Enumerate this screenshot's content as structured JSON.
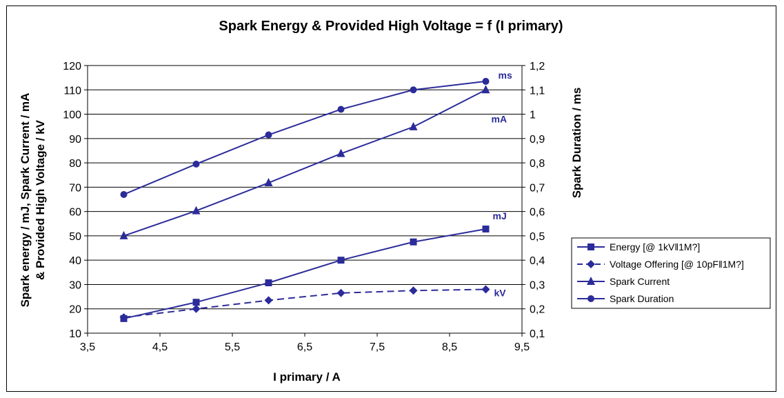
{
  "chart_data": {
    "type": "line",
    "title": "Spark Energy & Provided High Voltage = f (I primary)",
    "xlabel": "I primary / A",
    "ylabel_line1": "Spark energy / mJ, Spark Current / mA",
    "ylabel_line2": "& Provided High Voltage / kV",
    "y2label": "Spark Duration / ms",
    "xlim": [
      3.5,
      9.5
    ],
    "ylim": [
      10,
      120
    ],
    "y2lim": [
      0.1,
      1.2
    ],
    "x_ticks": [
      "3,5",
      "4,5",
      "5,5",
      "6,5",
      "7,5",
      "8,5",
      "9,5"
    ],
    "x_tick_values": [
      3.5,
      4.5,
      5.5,
      6.5,
      7.5,
      8.5,
      9.5
    ],
    "y_ticks": [
      "10",
      "20",
      "30",
      "40",
      "50",
      "60",
      "70",
      "80",
      "90",
      "100",
      "110",
      "120"
    ],
    "y_tick_values": [
      10,
      20,
      30,
      40,
      50,
      60,
      70,
      80,
      90,
      100,
      110,
      120
    ],
    "y2_ticks": [
      "0,1",
      "0,2",
      "0,3",
      "0,4",
      "0,5",
      "0,6",
      "0,7",
      "0,8",
      "0,9",
      "1",
      "1,1",
      "1,2"
    ],
    "grid": "horizontal",
    "legend_position": "right",
    "color": "#2B2B9A",
    "x": [
      4,
      5,
      6,
      7,
      8,
      9
    ],
    "series": [
      {
        "name": "Energy [@ 1kV‖1M?]",
        "axis": "left",
        "marker": "square",
        "dash": false,
        "unit": "mJ",
        "values": [
          16,
          22.7,
          30.7,
          40,
          47.5,
          52.8
        ]
      },
      {
        "name": "Voltage Offering [@ 10pF‖1M?]",
        "axis": "left",
        "marker": "diamond",
        "dash": true,
        "unit": "kV",
        "values": [
          16.5,
          20,
          23.5,
          26.5,
          27.5,
          28
        ]
      },
      {
        "name": "Spark Current",
        "axis": "left",
        "marker": "triangle",
        "dash": false,
        "unit": "mA",
        "values": [
          50,
          60.3,
          71.8,
          83.8,
          94.8,
          110
        ]
      },
      {
        "name": "Spark Duration",
        "axis": "right",
        "marker": "circle",
        "dash": false,
        "unit": "ms",
        "values": [
          0.67,
          0.795,
          0.915,
          1.02,
          1.1,
          1.135
        ]
      }
    ]
  }
}
